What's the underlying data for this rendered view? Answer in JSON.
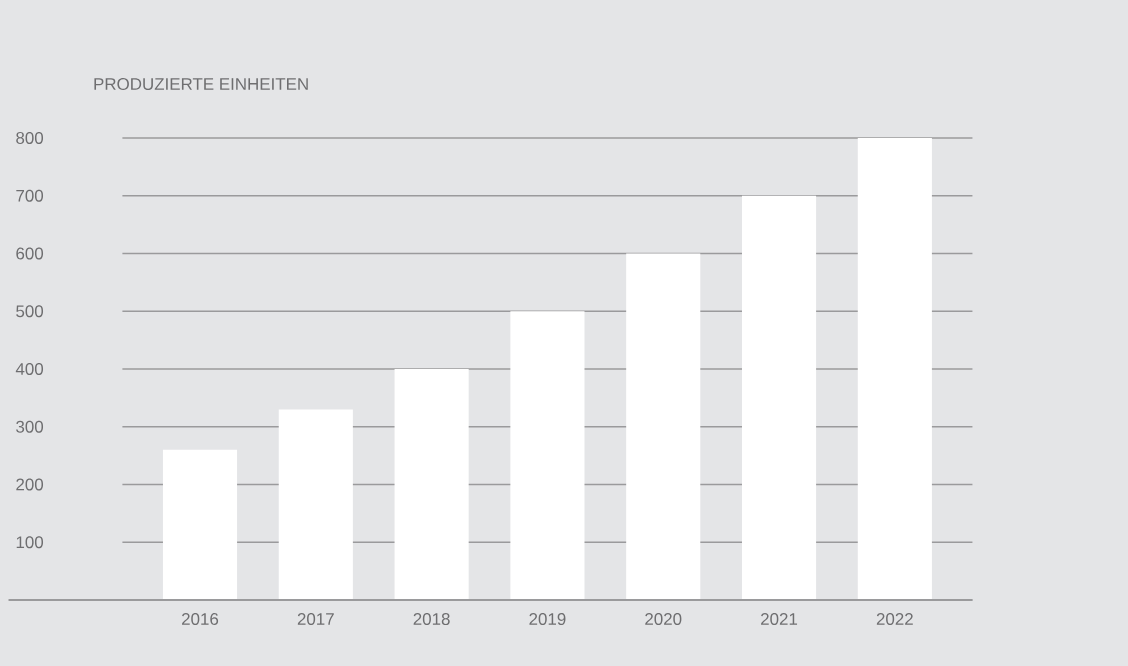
{
  "chart_data": {
    "type": "bar",
    "title": "PRODUZIERTE EINHEITEN",
    "categories": [
      "2016",
      "2017",
      "2018",
      "2019",
      "2020",
      "2021",
      "2022"
    ],
    "values": [
      260,
      330,
      400,
      500,
      600,
      700,
      800
    ],
    "color": "#ffffff",
    "ylim": [
      0,
      800
    ],
    "yticks": [
      {
        "value": 0,
        "label": null
      },
      100,
      200,
      300,
      400,
      500,
      600,
      700,
      800
    ],
    "grid": "y"
  }
}
